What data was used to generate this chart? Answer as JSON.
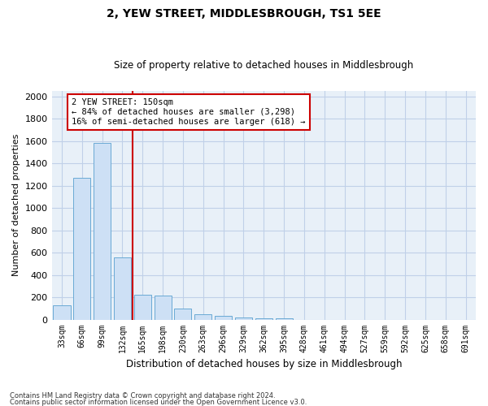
{
  "title": "2, YEW STREET, MIDDLESBROUGH, TS1 5EE",
  "subtitle": "Size of property relative to detached houses in Middlesbrough",
  "xlabel": "Distribution of detached houses by size in Middlesbrough",
  "ylabel": "Number of detached properties",
  "footer1": "Contains HM Land Registry data © Crown copyright and database right 2024.",
  "footer2": "Contains public sector information licensed under the Open Government Licence v3.0.",
  "annotation_line1": "2 YEW STREET: 150sqm",
  "annotation_line2": "← 84% of detached houses are smaller (3,298)",
  "annotation_line3": "16% of semi-detached houses are larger (618) →",
  "bar_labels": [
    "33sqm",
    "66sqm",
    "99sqm",
    "132sqm",
    "165sqm",
    "198sqm",
    "230sqm",
    "263sqm",
    "296sqm",
    "329sqm",
    "362sqm",
    "395sqm",
    "428sqm",
    "461sqm",
    "494sqm",
    "527sqm",
    "559sqm",
    "592sqm",
    "625sqm",
    "658sqm",
    "691sqm"
  ],
  "bar_values": [
    130,
    1270,
    1580,
    560,
    220,
    215,
    95,
    45,
    30,
    15,
    12,
    12,
    0,
    0,
    0,
    0,
    0,
    0,
    0,
    0,
    0
  ],
  "bar_color": "#cde0f5",
  "bar_edge_color": "#6aaad4",
  "grid_color": "#c0d0e8",
  "background_color": "#e8f0f8",
  "vline_color": "#cc0000",
  "vline_pos": 3.5,
  "annotation_box_edge_color": "#cc0000",
  "ylim_max": 2050,
  "ytick_step": 200
}
